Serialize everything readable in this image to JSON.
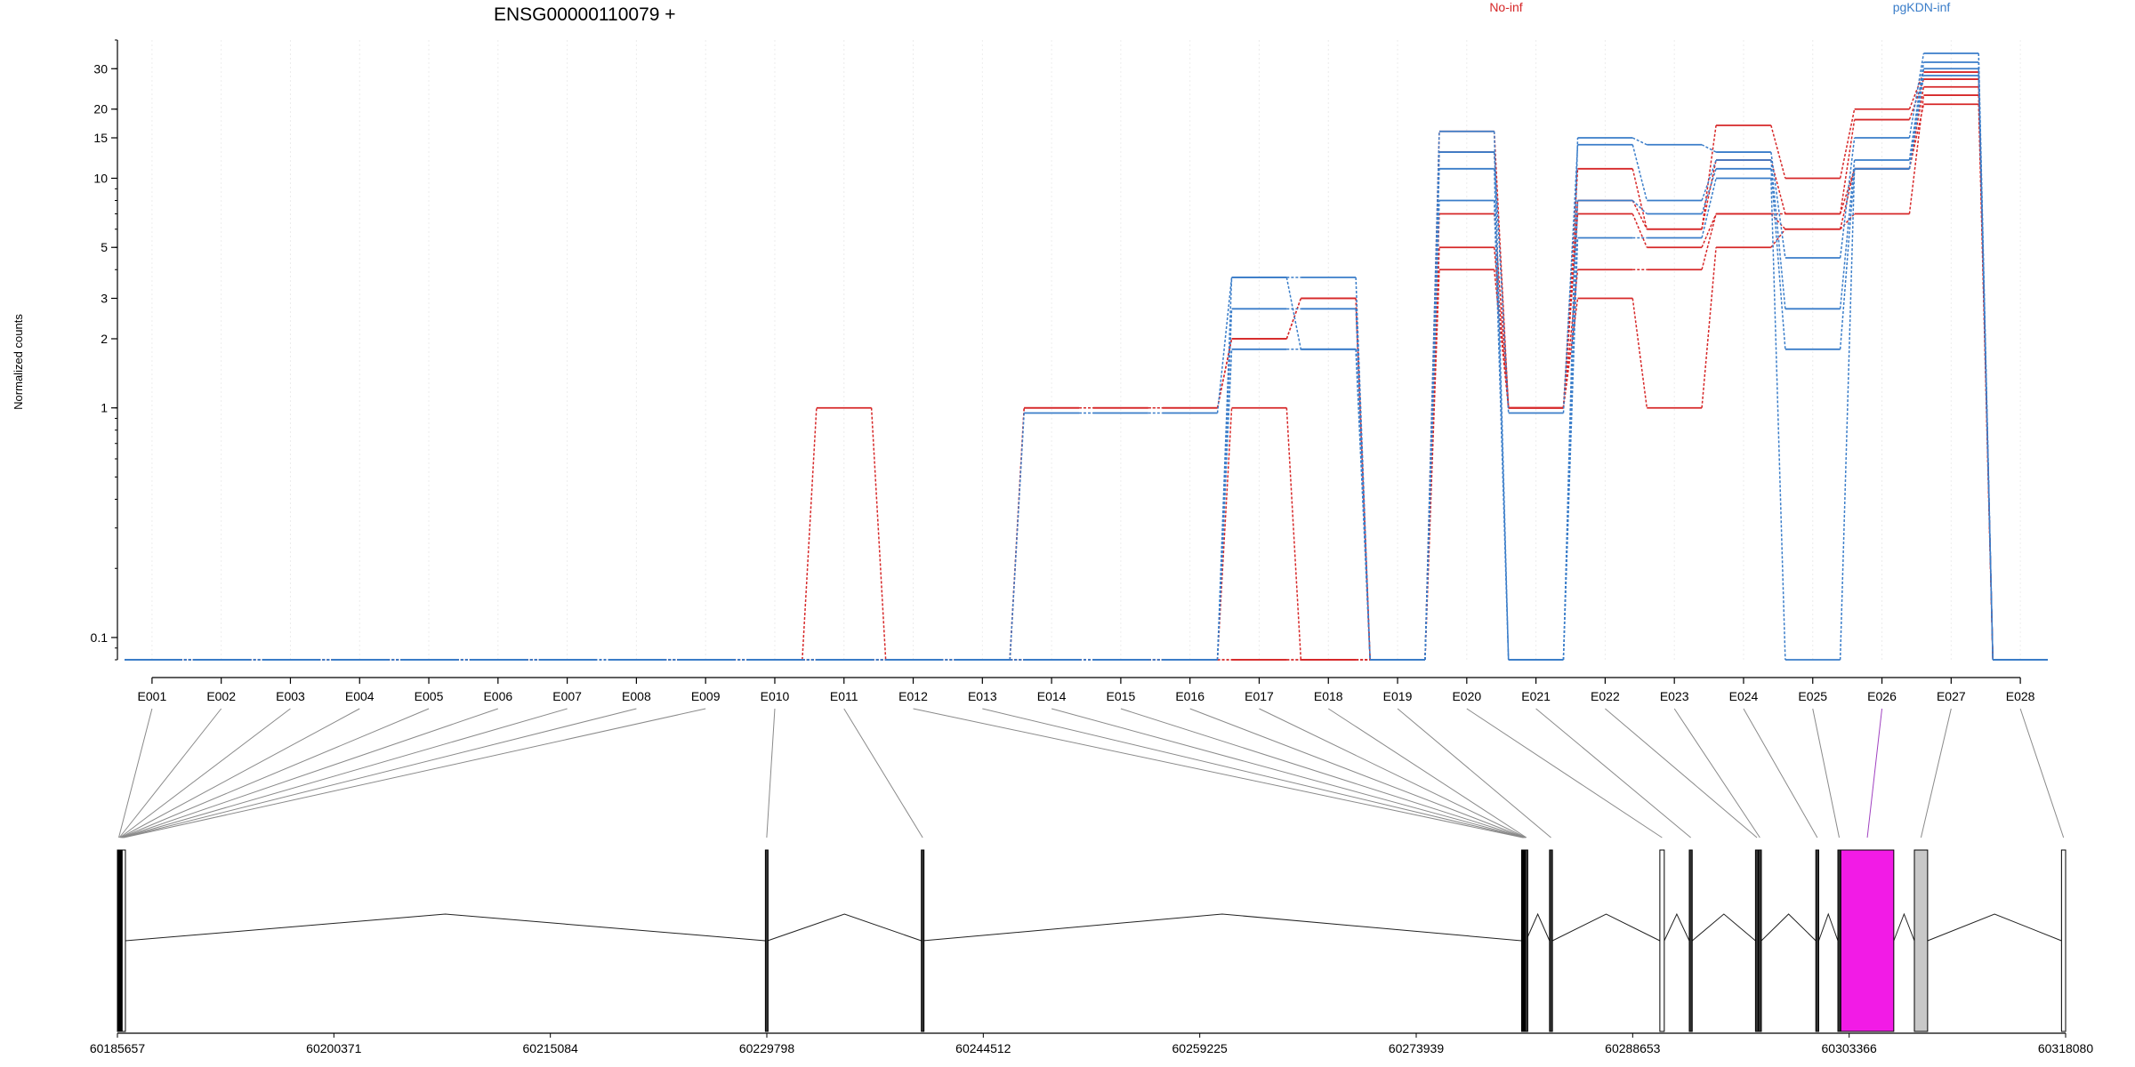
{
  "chart_data": {
    "type": "line",
    "title": "ENSG00000110079 +",
    "ylabel": "Normalized counts",
    "yscale": "log",
    "yticks": [
      0.1,
      1,
      2,
      3,
      5,
      10,
      15,
      20,
      30
    ],
    "ytick_labels": [
      "0.1",
      "1",
      "2",
      "3",
      "5",
      "10",
      "15",
      "20",
      "30"
    ],
    "ylim": [
      0.08,
      40
    ],
    "categories": [
      "E001",
      "E002",
      "E003",
      "E004",
      "E005",
      "E006",
      "E007",
      "E008",
      "E009",
      "E010",
      "E011",
      "E012",
      "E013",
      "E014",
      "E015",
      "E016",
      "E017",
      "E018",
      "E019",
      "E020",
      "E021",
      "E022",
      "E023",
      "E024",
      "E025",
      "E026",
      "E027",
      "E028"
    ],
    "legend": [
      {
        "name": "No-inf",
        "color": "#d62728"
      },
      {
        "name": "pgKDN-inf",
        "color": "#3a7dc9"
      }
    ],
    "series": [
      {
        "name": "",
        "group": "No-inf",
        "values": [
          0.08,
          0.08,
          0.08,
          0.08,
          0.08,
          0.08,
          0.08,
          0.08,
          0.08,
          0.08,
          1,
          0.08,
          0.08,
          1,
          1,
          1,
          2,
          3,
          0.08,
          16,
          1,
          11,
          6,
          17,
          10,
          20,
          29,
          0.08
        ]
      },
      {
        "name": "",
        "group": "No-inf",
        "values": [
          0.08,
          0.08,
          0.08,
          0.08,
          0.08,
          0.08,
          0.08,
          0.08,
          0.08,
          0.08,
          0.08,
          0.08,
          0.08,
          1,
          1,
          1,
          2,
          3,
          0.08,
          7,
          1,
          7,
          5,
          7,
          7,
          18,
          27,
          0.08
        ]
      },
      {
        "name": "",
        "group": "No-inf",
        "values": [
          0.08,
          0.08,
          0.08,
          0.08,
          0.08,
          0.08,
          0.08,
          0.08,
          0.08,
          0.08,
          0.08,
          0.08,
          0.08,
          0.08,
          0.08,
          0.08,
          1,
          0.08,
          0.08,
          5,
          1,
          4,
          4,
          7,
          6,
          11,
          25,
          0.08
        ]
      },
      {
        "name": "",
        "group": "No-inf",
        "values": [
          0.08,
          0.08,
          0.08,
          0.08,
          0.08,
          0.08,
          0.08,
          0.08,
          0.08,
          0.08,
          0.08,
          0.08,
          0.08,
          0.08,
          0.08,
          0.08,
          0.08,
          0.08,
          0.08,
          4,
          1,
          3,
          1,
          5,
          6,
          7,
          23,
          0.08
        ]
      },
      {
        "name": "",
        "group": "No-inf",
        "values": [
          0.08,
          0.08,
          0.08,
          0.08,
          0.08,
          0.08,
          0.08,
          0.08,
          0.08,
          0.08,
          0.08,
          0.08,
          0.08,
          0.08,
          0.08,
          0.08,
          0.08,
          0.08,
          0.08,
          13,
          1,
          8,
          6,
          12,
          7,
          11,
          21,
          0.08
        ]
      },
      {
        "name": "",
        "group": "pgKDN-inf",
        "values": [
          0.08,
          0.08,
          0.08,
          0.08,
          0.08,
          0.08,
          0.08,
          0.08,
          0.08,
          0.08,
          0.08,
          0.08,
          0.08,
          0.08,
          0.08,
          0.08,
          3.7,
          3.7,
          0.08,
          16,
          0.08,
          15,
          14,
          13,
          4.5,
          15,
          35,
          0.08
        ]
      },
      {
        "name": "",
        "group": "pgKDN-inf",
        "values": [
          0.08,
          0.08,
          0.08,
          0.08,
          0.08,
          0.08,
          0.08,
          0.08,
          0.08,
          0.08,
          0.08,
          0.08,
          0.08,
          0.95,
          0.95,
          0.95,
          3.7,
          1.8,
          0.08,
          13,
          0.95,
          14,
          8,
          12,
          2.7,
          12,
          32,
          0.08
        ]
      },
      {
        "name": "",
        "group": "pgKDN-inf",
        "values": [
          0.08,
          0.08,
          0.08,
          0.08,
          0.08,
          0.08,
          0.08,
          0.08,
          0.08,
          0.08,
          0.08,
          0.08,
          0.08,
          0.08,
          0.08,
          0.08,
          2.7,
          2.7,
          0.08,
          11,
          0.08,
          8,
          7,
          11,
          1.8,
          11,
          30,
          0.08
        ]
      },
      {
        "name": "",
        "group": "pgKDN-inf",
        "values": [
          0.08,
          0.08,
          0.08,
          0.08,
          0.08,
          0.08,
          0.08,
          0.08,
          0.08,
          0.08,
          0.08,
          0.08,
          0.08,
          0.08,
          0.08,
          0.08,
          1.8,
          1.8,
          0.08,
          8,
          0.08,
          5.5,
          5.5,
          10,
          0.08,
          11,
          28,
          0.08
        ]
      }
    ],
    "gene_model": {
      "coordinate_labels": [
        "60185657",
        "60200371",
        "60215084",
        "60229798",
        "60244512",
        "60259225",
        "60273939",
        "60288653",
        "60303366",
        "60318080"
      ],
      "range": [
        60185657,
        60318080
      ],
      "highlighted_exon": "E026",
      "exons": [
        {
          "id": "E001",
          "start": 60185657,
          "end": 60185700
        },
        {
          "id": "E002",
          "start": 60185700,
          "end": 60185740
        },
        {
          "id": "E003",
          "start": 60185740,
          "end": 60185780
        },
        {
          "id": "E004",
          "start": 60185780,
          "end": 60185820
        },
        {
          "id": "E005",
          "start": 60185820,
          "end": 60185860
        },
        {
          "id": "E006",
          "start": 60185860,
          "end": 60185900
        },
        {
          "id": "E007",
          "start": 60185900,
          "end": 60185940
        },
        {
          "id": "E008",
          "start": 60185940,
          "end": 60185980
        },
        {
          "id": "E009",
          "start": 60185980,
          "end": 60186200
        },
        {
          "id": "E010",
          "start": 60229700,
          "end": 60229850
        },
        {
          "id": "E011",
          "start": 60240300,
          "end": 60240400
        },
        {
          "id": "E012",
          "start": 60281100,
          "end": 60281140
        },
        {
          "id": "E013",
          "start": 60281140,
          "end": 60281180
        },
        {
          "id": "E014",
          "start": 60281180,
          "end": 60281220
        },
        {
          "id": "E015",
          "start": 60281220,
          "end": 60281260
        },
        {
          "id": "E016",
          "start": 60281260,
          "end": 60281300
        },
        {
          "id": "E017",
          "start": 60281300,
          "end": 60281340
        },
        {
          "id": "E018",
          "start": 60281340,
          "end": 60281400
        },
        {
          "id": "E019",
          "start": 60283000,
          "end": 60283200
        },
        {
          "id": "E020",
          "start": 60290500,
          "end": 60290800
        },
        {
          "id": "E021",
          "start": 60292500,
          "end": 60292700
        },
        {
          "id": "E022",
          "start": 60297000,
          "end": 60297200
        },
        {
          "id": "E023",
          "start": 60297200,
          "end": 60297400
        },
        {
          "id": "E024",
          "start": 60301100,
          "end": 60301300
        },
        {
          "id": "E025",
          "start": 60302600,
          "end": 60302700
        },
        {
          "id": "E026",
          "start": 60302800,
          "end": 60306400
        },
        {
          "id": "E027",
          "start": 60307800,
          "end": 60308700
        },
        {
          "id": "E028",
          "start": 60317800,
          "end": 60318080
        }
      ]
    }
  }
}
